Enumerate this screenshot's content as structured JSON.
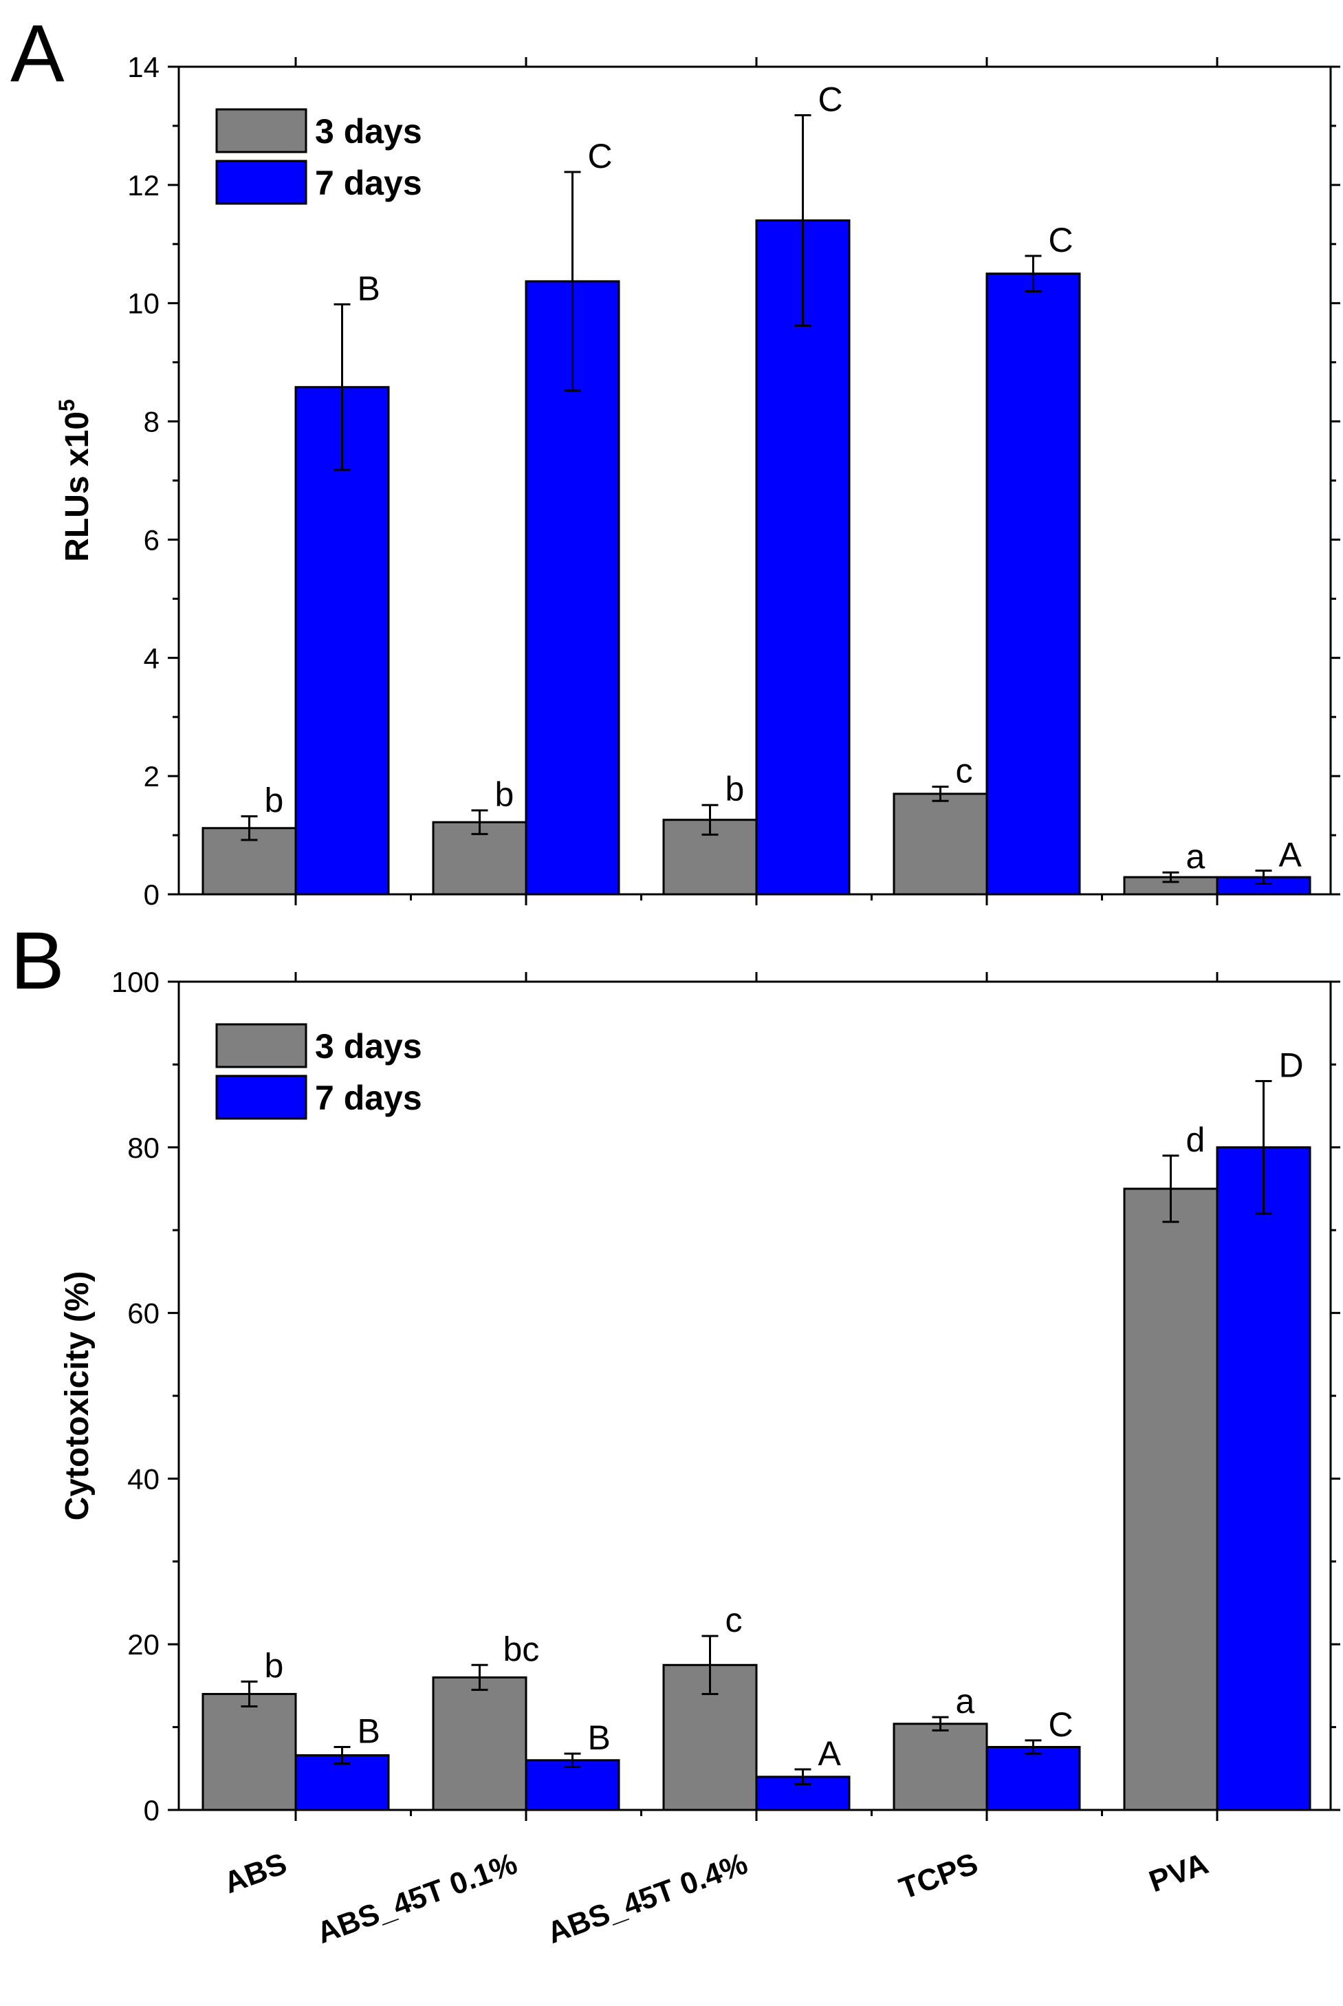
{
  "chart_data": [
    {
      "panel": "A",
      "type": "bar",
      "title": "",
      "xlabel": "",
      "ylabel": "RLUs x10",
      "ylabel_superscript": "5",
      "ylim": [
        0,
        14
      ],
      "yticks": [
        "0",
        "2",
        "4",
        "6",
        "8",
        "10",
        "12",
        "14"
      ],
      "grid": false,
      "legend_position": "top-left",
      "categories": [
        "ABS",
        "ABS_45T 0.1%",
        "ABS_45T 0.4%",
        "TCPS",
        "PVA"
      ],
      "series": [
        {
          "name": "3 days",
          "color": "#808080",
          "values": [
            1.12,
            1.22,
            1.26,
            1.7,
            0.29
          ],
          "errors": [
            0.2,
            0.2,
            0.25,
            0.12,
            0.08
          ],
          "letters": [
            "b",
            "b",
            "b",
            "c",
            "a"
          ]
        },
        {
          "name": "7 days",
          "color": "#0000ff",
          "values": [
            8.58,
            10.37,
            11.4,
            10.5,
            0.29
          ],
          "errors": [
            1.4,
            1.85,
            1.78,
            0.3,
            0.11
          ],
          "letters": [
            "B",
            "C",
            "C",
            "C",
            "A"
          ]
        }
      ]
    },
    {
      "panel": "B",
      "type": "bar",
      "title": "",
      "xlabel": "",
      "ylabel": "Cytotoxicity (%)",
      "ylim": [
        0,
        100
      ],
      "yticks": [
        "0",
        "20",
        "40",
        "60",
        "80",
        "100"
      ],
      "grid": false,
      "legend_position": "top-left",
      "categories": [
        "ABS",
        "ABS_45T 0.1%",
        "ABS_45T 0.4%",
        "TCPS",
        "PVA"
      ],
      "series": [
        {
          "name": "3 days",
          "color": "#808080",
          "values": [
            14.0,
            16.0,
            17.5,
            10.4,
            75.0
          ],
          "errors": [
            1.5,
            1.5,
            3.5,
            0.8,
            4.0
          ],
          "letters": [
            "b",
            "bc",
            "c",
            "a",
            "d"
          ]
        },
        {
          "name": "7 days",
          "color": "#0000ff",
          "values": [
            6.6,
            6.0,
            4.0,
            7.6,
            80.0
          ],
          "errors": [
            1.0,
            0.8,
            0.9,
            0.8,
            8.0
          ],
          "letters": [
            "B",
            "B",
            "A",
            "C",
            "D"
          ]
        }
      ]
    }
  ]
}
